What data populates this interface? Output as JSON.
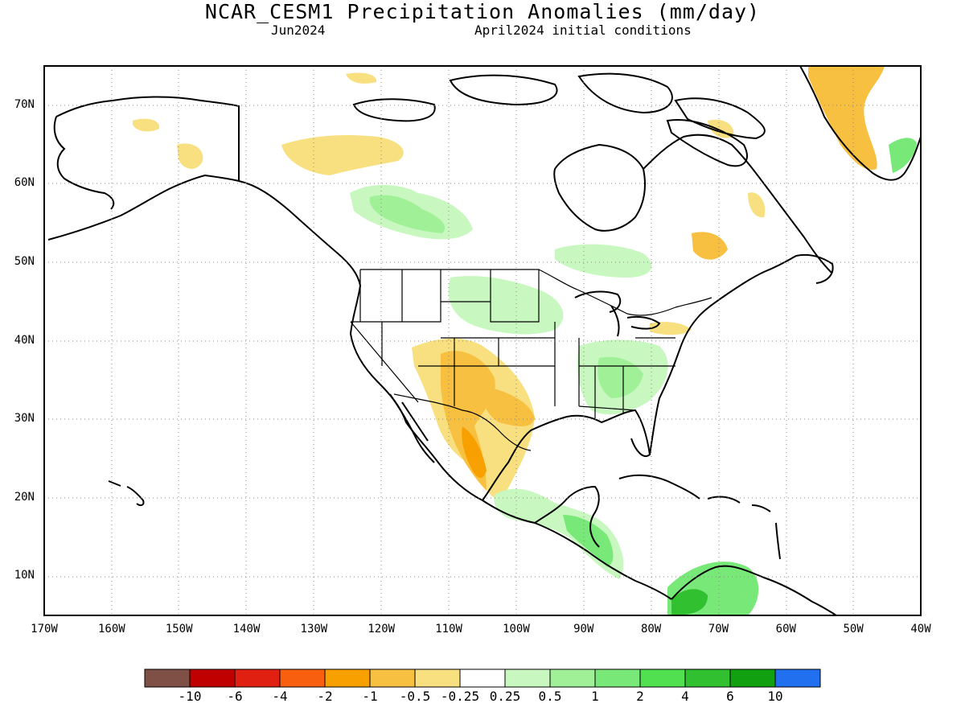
{
  "title": "NCAR_CESM1 Precipitation Anomalies (mm/day)",
  "subtitle_left": "Jun2024",
  "subtitle_right": "April2024 initial conditions",
  "map": {
    "projection": "equirectangular",
    "lon_range": [
      -170,
      -40
    ],
    "lat_range": [
      5,
      75
    ],
    "gridlines": "dotted",
    "x_ticks": [
      "170W",
      "160W",
      "150W",
      "140W",
      "130W",
      "120W",
      "110W",
      "100W",
      "90W",
      "80W",
      "70W",
      "60W",
      "50W",
      "40W"
    ],
    "y_ticks": [
      "70N",
      "60N",
      "50N",
      "40N",
      "30N",
      "20N",
      "10N"
    ],
    "region": "North America and Central America"
  },
  "colorbar": {
    "labels": [
      "-10",
      "-6",
      "-4",
      "-2",
      "-1",
      "-0.5",
      "-0.25",
      "0.25",
      "0.5",
      "1",
      "2",
      "4",
      "6",
      "10"
    ],
    "colors": [
      "#7f5045",
      "#c00000",
      "#e02010",
      "#f86010",
      "#f8a000",
      "#f8c040",
      "#f8e080",
      "#ffffff",
      "#c8f8c0",
      "#a0f098",
      "#78e878",
      "#50e050",
      "#30c030",
      "#10a010",
      "#2070f0"
    ]
  },
  "chart_data": {
    "type": "heatmap",
    "title": "NCAR_CESM1 Precipitation Anomalies (mm/day)",
    "anomaly_regions": [
      {
        "area": "Southwest US / northwestern Mexico",
        "category": "dry",
        "range": "-2 to -0.5"
      },
      {
        "area": "Southern Great Plains / Texas",
        "category": "dry",
        "range": "-1 to -0.25"
      },
      {
        "area": "Western Canada (Alberta/Saskatchewan)",
        "category": "wet",
        "range": "0.25 to 1"
      },
      {
        "area": "Northern Great Plains",
        "category": "wet",
        "range": "0.25 to 1"
      },
      {
        "area": "Southeast US",
        "category": "wet",
        "range": "0.25 to 2"
      },
      {
        "area": "Southern Mexico / Central America",
        "category": "wet",
        "range": "0.25 to 2"
      },
      {
        "area": "Northwestern South America",
        "category": "wet",
        "range": "1 to 6"
      },
      {
        "area": "Yukon / Northwest Territories",
        "category": "dry",
        "range": "-1 to -0.25"
      },
      {
        "area": "Southern Greenland",
        "category": "dry",
        "range": "-2 to -0.25"
      },
      {
        "area": "Quebec / Labrador",
        "category": "dry",
        "range": "-0.5 to -0.25"
      }
    ]
  }
}
